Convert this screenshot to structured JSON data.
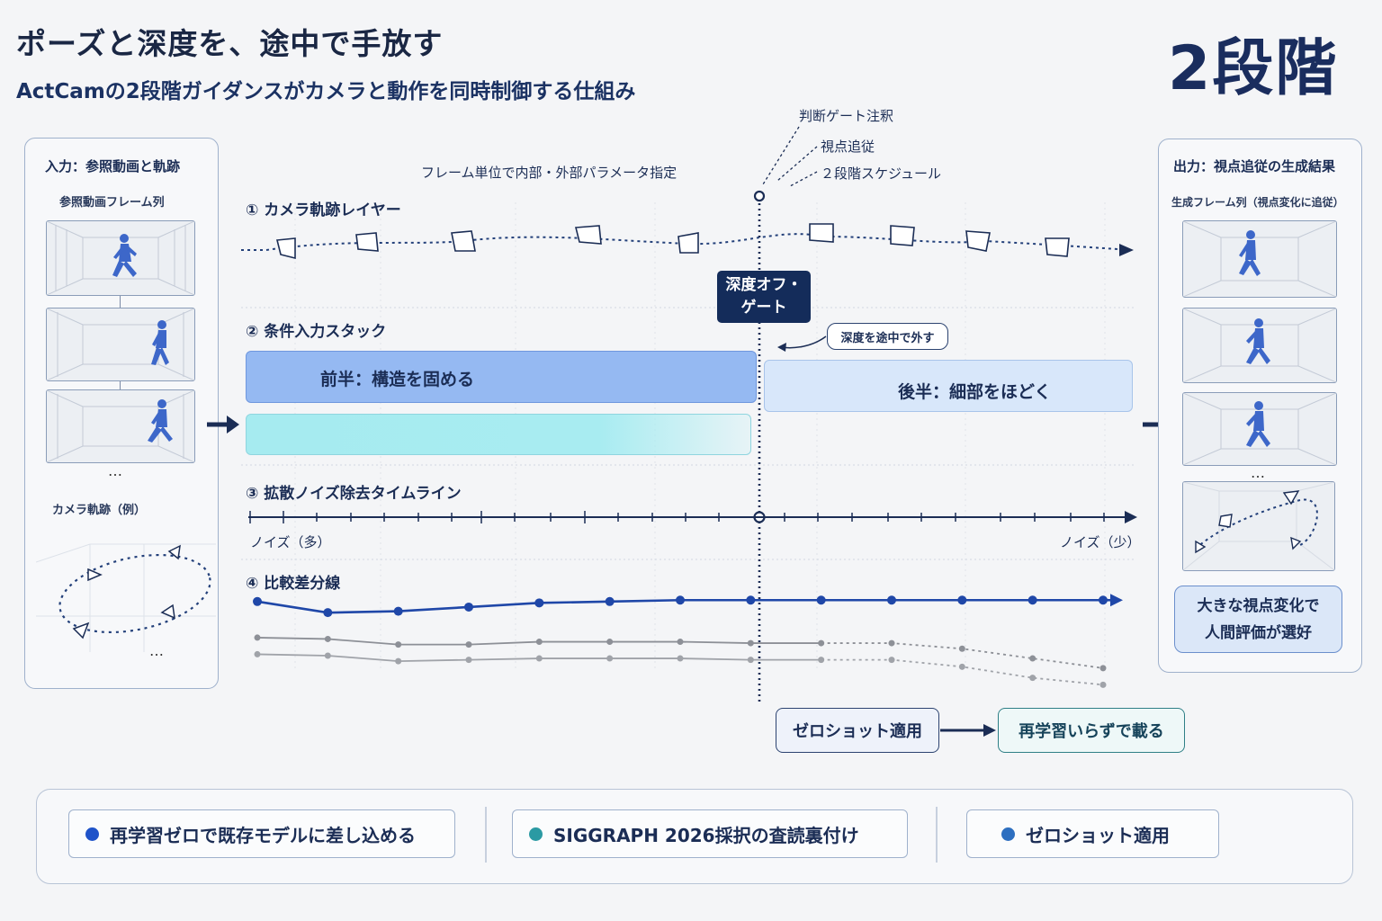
{
  "header": {
    "title": "ポーズと深度を、途中で手放す",
    "subtitle": "ActCamの2段階ガイダンスがカメラと動作を同時制御する仕組み",
    "badge": "2段階"
  },
  "input_panel": {
    "title": "入力：参照動画と軌跡",
    "frames_label": "参照動画フレーム列",
    "ellipsis": "…",
    "trajectory_label": "カメラ軌跡（例）",
    "traj_ellipsis": "…"
  },
  "output_panel": {
    "title": "出力：視点追従の生成結果",
    "frames_label": "生成フレーム列（視点変化に追従）",
    "ellipsis": "…",
    "preference_line1": "大きな視点変化で",
    "preference_line2": "人間評価が選好"
  },
  "annotations": {
    "judgement": "判断ゲート注釈",
    "view_follow": "視点追従",
    "schedule": "２段階スケジュール",
    "frame_param": "フレーム単位で内部・外部パラメータ指定"
  },
  "sections": {
    "camera": "① カメラ軌跡レイヤー",
    "condition": "② 条件入力スタック",
    "denoise": "③ 拡散ノイズ除去タイムライン",
    "compare": "④ 比較差分線"
  },
  "gate": {
    "line1": "深度オフ・",
    "line2": "ゲート"
  },
  "depth_note": "深度を途中で外す",
  "bars": {
    "front": "前半：構造を固める",
    "back": "後半：細部をほどく"
  },
  "timeline": {
    "start": "ノイズ（多）",
    "end": "ノイズ（少）"
  },
  "lines_x": [
    1,
    2,
    3,
    4,
    5,
    6,
    7,
    8,
    9,
    10,
    11,
    12,
    13
  ],
  "chart_data": {
    "type": "line",
    "title": "",
    "xlabel": "",
    "ylabel": "",
    "x": [
      1,
      2,
      3,
      4,
      5,
      6,
      7,
      8,
      9,
      10,
      11,
      12,
      13
    ],
    "series": [
      {
        "values": [
          0.08,
          0.0,
          0.01,
          0.04,
          0.07,
          0.08,
          0.09,
          0.09,
          0.09,
          0.09,
          0.09,
          0.09,
          0.09
        ],
        "color": "#1f47a8"
      },
      {
        "values": [
          -0.18,
          -0.19,
          -0.23,
          -0.23,
          -0.21,
          -0.21,
          -0.21,
          -0.22,
          -0.22,
          -0.22,
          -0.26,
          -0.33,
          -0.4
        ],
        "color": "#8d9097"
      },
      {
        "values": [
          -0.3,
          -0.31,
          -0.35,
          -0.34,
          -0.33,
          -0.33,
          -0.33,
          -0.34,
          -0.34,
          -0.34,
          -0.39,
          -0.47,
          -0.52
        ],
        "color": "#a0a3a9"
      }
    ]
  },
  "flow": {
    "zero_shot": "ゼロショット適用",
    "no_retrain": "再学習いらずで載る"
  },
  "footer": {
    "item1": "再学習ゼロで既存モデルに差し込める",
    "item2": "SIGGRAPH 2026採択の査読裏付け",
    "item3": "ゼロショット適用"
  },
  "colors": {
    "navy": "#142c5a",
    "blue_dot": "#1f53c9",
    "teal_dot": "#2b9aa3",
    "front_bar": "#95b9f2",
    "back_bar": "#d8e7fa"
  }
}
